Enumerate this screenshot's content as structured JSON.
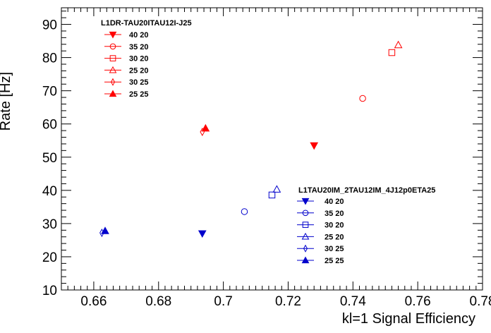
{
  "chart_data": {
    "type": "scatter",
    "xlabel": "kl=1 Signal Efficiency",
    "ylabel": "Rate [Hz]",
    "xlim": [
      0.65,
      0.78
    ],
    "ylim": [
      10,
      95
    ],
    "x_ticks": [
      "0.66",
      "0.68",
      "0.7",
      "0.72",
      "0.74",
      "0.76",
      "0.78"
    ],
    "y_ticks": [
      "10",
      "20",
      "30",
      "40",
      "50",
      "60",
      "70",
      "80",
      "90"
    ],
    "grid": false,
    "legends": [
      {
        "title": "L1DR-TAU20ITAU12I-J25",
        "color": "#ff0000",
        "placement": "top-left",
        "entries": [
          {
            "label": "40 20",
            "marker": "triangle-down-filled"
          },
          {
            "label": "35 20",
            "marker": "circle-open"
          },
          {
            "label": "30 20",
            "marker": "square-open"
          },
          {
            "label": "25 20",
            "marker": "triangle-up-open"
          },
          {
            "label": "30 25",
            "marker": "diamond-open"
          },
          {
            "label": "25 25",
            "marker": "triangle-up-filled"
          }
        ]
      },
      {
        "title": "L1TAU20IM_2TAU12IM_4J12p0ETA25",
        "color": "#0000cc",
        "placement": "bottom-right",
        "entries": [
          {
            "label": "40 20",
            "marker": "triangle-down-filled"
          },
          {
            "label": "35 20",
            "marker": "circle-open"
          },
          {
            "label": "30 20",
            "marker": "square-open"
          },
          {
            "label": "25 20",
            "marker": "triangle-up-open"
          },
          {
            "label": "30 25",
            "marker": "diamond-open"
          },
          {
            "label": "25 25",
            "marker": "triangle-up-filled"
          }
        ]
      }
    ],
    "series": [
      {
        "group": "L1DR-TAU20ITAU12I-J25",
        "label": "40 20",
        "color": "#ff0000",
        "marker": "triangle-down-filled",
        "x": 0.728,
        "y": 53.5
      },
      {
        "group": "L1DR-TAU20ITAU12I-J25",
        "label": "35 20",
        "color": "#ff0000",
        "marker": "circle-open",
        "x": 0.743,
        "y": 67.7
      },
      {
        "group": "L1DR-TAU20ITAU12I-J25",
        "label": "30 20",
        "color": "#ff0000",
        "marker": "square-open",
        "x": 0.752,
        "y": 81.5
      },
      {
        "group": "L1DR-TAU20ITAU12I-J25",
        "label": "25 20",
        "color": "#ff0000",
        "marker": "triangle-up-open",
        "x": 0.754,
        "y": 83.8
      },
      {
        "group": "L1DR-TAU20ITAU12I-J25",
        "label": "30 25",
        "color": "#ff0000",
        "marker": "diamond-open",
        "x": 0.6935,
        "y": 57.6
      },
      {
        "group": "L1DR-TAU20ITAU12I-J25",
        "label": "25 25",
        "color": "#ff0000",
        "marker": "triangle-up-filled",
        "x": 0.6945,
        "y": 58.7
      },
      {
        "group": "L1TAU20IM_2TAU12IM_4J12p0ETA25",
        "label": "40 20",
        "color": "#0000cc",
        "marker": "triangle-down-filled",
        "x": 0.6935,
        "y": 27.0
      },
      {
        "group": "L1TAU20IM_2TAU12IM_4J12p0ETA25",
        "label": "35 20",
        "color": "#0000cc",
        "marker": "circle-open",
        "x": 0.7065,
        "y": 33.6
      },
      {
        "group": "L1TAU20IM_2TAU12IM_4J12p0ETA25",
        "label": "30 20",
        "color": "#0000cc",
        "marker": "square-open",
        "x": 0.715,
        "y": 38.6
      },
      {
        "group": "L1TAU20IM_2TAU12IM_4J12p0ETA25",
        "label": "25 20",
        "color": "#0000cc",
        "marker": "triangle-up-open",
        "x": 0.7165,
        "y": 40.3
      },
      {
        "group": "L1TAU20IM_2TAU12IM_4J12p0ETA25",
        "label": "30 25",
        "color": "#0000cc",
        "marker": "diamond-open",
        "x": 0.6625,
        "y": 27.2
      },
      {
        "group": "L1TAU20IM_2TAU12IM_4J12p0ETA25",
        "label": "25 25",
        "color": "#0000cc",
        "marker": "triangle-up-filled",
        "x": 0.6635,
        "y": 27.8
      }
    ]
  }
}
